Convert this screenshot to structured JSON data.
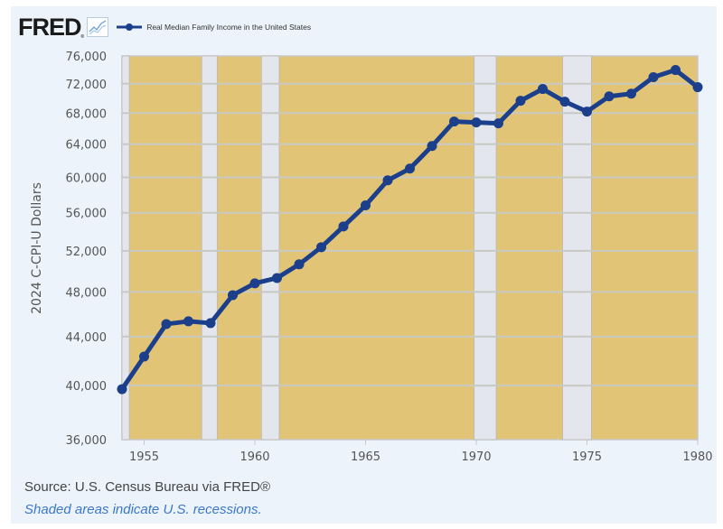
{
  "header": {
    "logo_text": "FRED",
    "logo_reg": "®",
    "legend_label": "Real Median Family Income in the United States"
  },
  "colors": {
    "series": "#1b3f8b",
    "plot_fill": "#e2c477",
    "recession": "#e3e6ec",
    "grid": "#c9c9c3",
    "panel": "#ecf3fb"
  },
  "footer": {
    "source": "Source: U.S. Census Bureau via FRED®",
    "note": "Shaded areas indicate U.S. recessions."
  },
  "chart_data": {
    "type": "line",
    "title": "Real Median Family Income in the United States",
    "xlabel": "",
    "ylabel": "2024 C-CPI-U Dollars",
    "y_scale": "log",
    "xlim": [
      1954,
      1980
    ],
    "ylim": [
      36000,
      76000
    ],
    "grid": true,
    "legend_position": "top-left",
    "x_ticks": [
      1955,
      1960,
      1965,
      1970,
      1975,
      1980
    ],
    "y_ticks": [
      36000,
      40000,
      44000,
      48000,
      52000,
      56000,
      60000,
      64000,
      68000,
      72000,
      76000
    ],
    "y_tick_labels": [
      "36,000",
      "40,000",
      "44,000",
      "48,000",
      "52,000",
      "56,000",
      "60,000",
      "64,000",
      "68,000",
      "72,000",
      "76,000"
    ],
    "recessions": [
      [
        1954.0,
        1954.33
      ],
      [
        1957.6,
        1958.3
      ],
      [
        1960.3,
        1961.1
      ],
      [
        1969.9,
        1970.9
      ],
      [
        1973.9,
        1975.2
      ]
    ],
    "series": [
      {
        "name": "Real Median Family Income in the United States",
        "x": [
          1954,
          1955,
          1956,
          1957,
          1958,
          1959,
          1960,
          1961,
          1962,
          1963,
          1964,
          1965,
          1966,
          1967,
          1968,
          1969,
          1970,
          1971,
          1972,
          1973,
          1974,
          1975,
          1976,
          1977,
          1978,
          1979,
          1980
        ],
        "values": [
          39720,
          42320,
          45090,
          45330,
          45170,
          47700,
          48810,
          49320,
          50650,
          52370,
          54530,
          56810,
          59650,
          61030,
          63770,
          66890,
          66770,
          66650,
          69650,
          71270,
          69530,
          68200,
          70250,
          70620,
          72930,
          73950,
          71520
        ]
      }
    ]
  }
}
